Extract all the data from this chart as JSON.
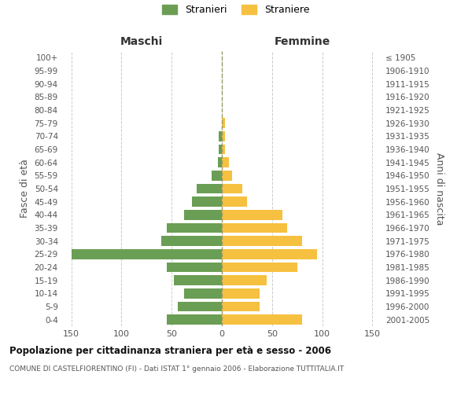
{
  "age_groups": [
    "0-4",
    "5-9",
    "10-14",
    "15-19",
    "20-24",
    "25-29",
    "30-34",
    "35-39",
    "40-44",
    "45-49",
    "50-54",
    "55-59",
    "60-64",
    "65-69",
    "70-74",
    "75-79",
    "80-84",
    "85-89",
    "90-94",
    "95-99",
    "100+"
  ],
  "birth_years": [
    "2001-2005",
    "1996-2000",
    "1991-1995",
    "1986-1990",
    "1981-1985",
    "1976-1980",
    "1971-1975",
    "1966-1970",
    "1961-1965",
    "1956-1960",
    "1951-1955",
    "1946-1950",
    "1941-1945",
    "1936-1940",
    "1931-1935",
    "1926-1930",
    "1921-1925",
    "1916-1920",
    "1911-1915",
    "1906-1910",
    "≤ 1905"
  ],
  "maschi": [
    55,
    44,
    38,
    48,
    55,
    150,
    60,
    55,
    38,
    30,
    25,
    10,
    4,
    3,
    3,
    0,
    0,
    0,
    0,
    0,
    0
  ],
  "femmine": [
    80,
    38,
    38,
    45,
    75,
    95,
    80,
    65,
    60,
    25,
    20,
    10,
    7,
    3,
    3,
    3,
    0,
    0,
    0,
    0,
    0
  ],
  "male_color": "#6b9e55",
  "female_color": "#f6c140",
  "title": "Popolazione per cittadinanza straniera per età e sesso - 2006",
  "subtitle": "COMUNE DI CASTELFIORENTINO (FI) - Dati ISTAT 1° gennaio 2006 - Elaborazione TUTTITALIA.IT",
  "ylabel_left": "Fasce di età",
  "ylabel_right": "Anni di nascita",
  "xlabel_maschi": "Maschi",
  "xlabel_femmine": "Femmine",
  "legend_maschi": "Stranieri",
  "legend_femmine": "Straniere",
  "xlim": 160,
  "bg_color": "#ffffff",
  "grid_color": "#cccccc"
}
